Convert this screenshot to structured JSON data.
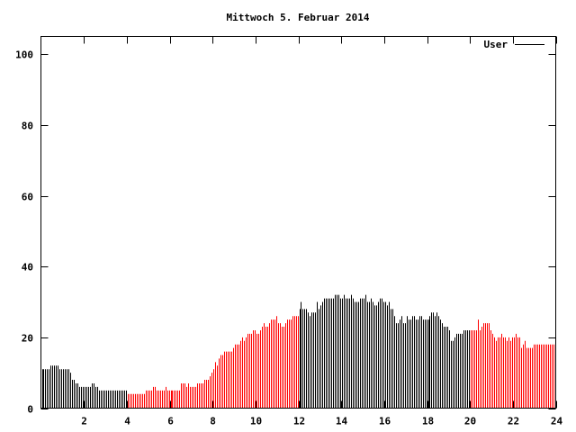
{
  "chart_data": {
    "type": "bar",
    "title": "Mittwoch 5. Februar 2014",
    "xlabel": "",
    "ylabel": "",
    "xlim": [
      0,
      24
    ],
    "ylim": [
      0,
      105
    ],
    "x_ticks": [
      2,
      4,
      6,
      8,
      10,
      12,
      14,
      16,
      18,
      20,
      22,
      24
    ],
    "y_ticks": [
      0,
      20,
      40,
      60,
      80,
      100
    ],
    "legend": {
      "label": "User",
      "placement": "top-right"
    },
    "samples_per_hour": 12,
    "color_ranges": [
      {
        "from": 0,
        "to": 4,
        "color": "#000000"
      },
      {
        "from": 4,
        "to": 12,
        "color": "#ff0000"
      },
      {
        "from": 12,
        "to": 20,
        "color": "#000000"
      },
      {
        "from": 20,
        "to": 24,
        "color": "#ff0000"
      }
    ],
    "series": [
      {
        "name": "User",
        "values": [
          11,
          11,
          11,
          11,
          11,
          12,
          12,
          12,
          12,
          12,
          11,
          11,
          11,
          11,
          11,
          11,
          10,
          8,
          8,
          7,
          7,
          6,
          6,
          6,
          6,
          6,
          6,
          6,
          7,
          7,
          6,
          6,
          5,
          5,
          5,
          5,
          5,
          5,
          5,
          5,
          5,
          5,
          5,
          5,
          5,
          5,
          5,
          5,
          4,
          4,
          4,
          4,
          4,
          4,
          4,
          4,
          4,
          4,
          5,
          5,
          5,
          5,
          6,
          6,
          5,
          5,
          5,
          5,
          5,
          6,
          5,
          5,
          5,
          5,
          5,
          5,
          5,
          5,
          7,
          7,
          7,
          6,
          7,
          6,
          6,
          6,
          6,
          7,
          7,
          7,
          7,
          8,
          8,
          8,
          9,
          10,
          11,
          13,
          12,
          14,
          15,
          15,
          16,
          16,
          16,
          16,
          16,
          17,
          18,
          18,
          18,
          19,
          20,
          19,
          20,
          21,
          21,
          21,
          22,
          22,
          21,
          21,
          22,
          23,
          24,
          23,
          23,
          24,
          25,
          25,
          25,
          26,
          24,
          24,
          23,
          23,
          24,
          25,
          25,
          25,
          26,
          26,
          26,
          26,
          28,
          30,
          28,
          28,
          28,
          27,
          26,
          27,
          27,
          27,
          30,
          28,
          29,
          30,
          31,
          31,
          31,
          31,
          31,
          31,
          32,
          32,
          32,
          31,
          31,
          32,
          31,
          31,
          31,
          32,
          31,
          30,
          30,
          30,
          31,
          31,
          31,
          32,
          30,
          30,
          31,
          30,
          29,
          29,
          30,
          31,
          31,
          30,
          30,
          29,
          30,
          28,
          28,
          26,
          24,
          24,
          25,
          26,
          24,
          24,
          26,
          25,
          25,
          26,
          26,
          25,
          25,
          26,
          26,
          25,
          25,
          25,
          25,
          26,
          27,
          27,
          26,
          27,
          26,
          25,
          24,
          23,
          23,
          23,
          22,
          19,
          19,
          20,
          21,
          21,
          21,
          21,
          22,
          22,
          22,
          22,
          22,
          22,
          22,
          22,
          25,
          22,
          23,
          24,
          24,
          24,
          24,
          22,
          21,
          20,
          19,
          20,
          20,
          21,
          20,
          20,
          19,
          20,
          19,
          20,
          20,
          21,
          20,
          20,
          17,
          18,
          19,
          17,
          17,
          17,
          17,
          18,
          18,
          18,
          18,
          18,
          18,
          18,
          18,
          18,
          18,
          18,
          18,
          17
        ]
      }
    ]
  }
}
